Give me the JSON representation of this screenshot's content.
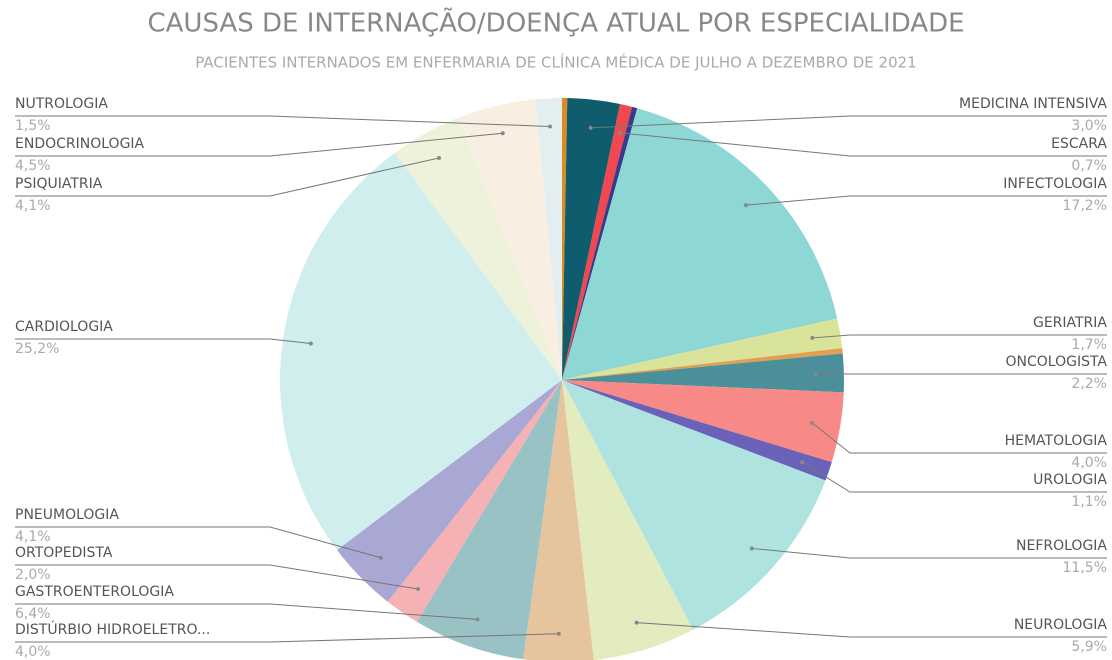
{
  "chart_data": {
    "type": "pie",
    "title": "CAUSAS DE INTERNAÇÃO/DOENÇA ATUAL POR ESPECIALIDADE",
    "subtitle": "PACIENTES INTERNADOS EM ENFERMARIA DE CLÍNICA MÉDICA DE JULHO A DEZEMBRO DE 2021",
    "categories": [
      null,
      "MEDICINA INTENSIVA",
      "ESCARA",
      null,
      "INFECTOLOGIA",
      "GERIATRIA",
      null,
      "ONCOLOGISTA",
      "HEMATOLOGIA",
      "UROLOGIA",
      "NEFROLOGIA",
      "NEUROLOGIA",
      "DISTÚRBIO HIDROELETRO...",
      "GASTROENTEROLOGIA",
      "ORTOPEDISTA",
      "PNEUMOLOGIA",
      "CARDIOLOGIA",
      "PSIQUIATRIA",
      "ENDOCRINOLOGIA",
      "NUTROLOGIA"
    ],
    "values": [
      0.3,
      3.0,
      0.7,
      0.3,
      17.2,
      1.7,
      0.3,
      2.2,
      4.0,
      1.1,
      11.5,
      5.9,
      4.0,
      6.4,
      2.0,
      4.1,
      25.2,
      4.1,
      4.5,
      1.5
    ],
    "value_labels": [
      null,
      "3,0%",
      "0,7%",
      null,
      "17,2%",
      "1,7%",
      null,
      "2,2%",
      "4,0%",
      "1,1%",
      "11,5%",
      "5,9%",
      "4,0%",
      "6,4%",
      "2,0%",
      "4,1%",
      "25,2%",
      "4,1%",
      "4,5%",
      "1,5%"
    ],
    "colors": [
      "#d98c1f",
      "#0e5c6e",
      "#f0484e",
      "#3a3a8c",
      "#8dd8d4",
      "#d9e39a",
      "#e0a050",
      "#4a8f9a",
      "#f78a86",
      "#6a62b8",
      "#aee3e0",
      "#e3ecbf",
      "#e6c59e",
      "#99c2c5",
      "#f6b1b4",
      "#a9a8d4",
      "#cfeeed",
      "#eef2da",
      "#f8eee2",
      "#e3eef0"
    ]
  }
}
